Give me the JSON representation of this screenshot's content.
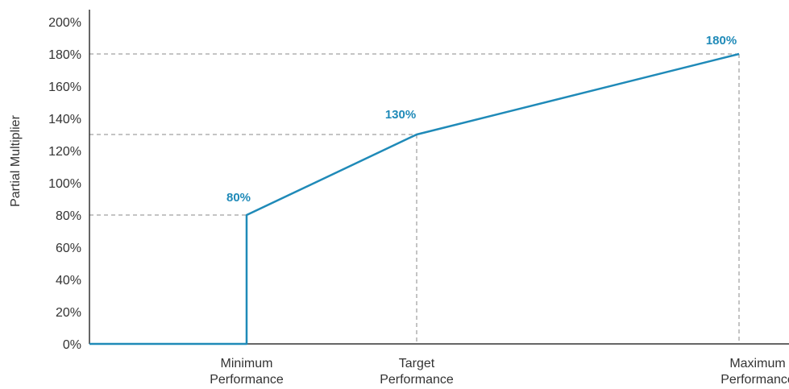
{
  "chart_data": {
    "type": "line",
    "ylabel": "Partial Multiplier",
    "xlabel": "",
    "ylim": [
      0,
      200
    ],
    "y_ticks": [
      "0%",
      "20%",
      "40%",
      "60%",
      "80%",
      "100%",
      "120%",
      "140%",
      "160%",
      "180%",
      "200%"
    ],
    "y_tick_values": [
      0,
      20,
      40,
      60,
      80,
      100,
      120,
      140,
      160,
      180,
      200
    ],
    "categories": [
      {
        "line1": "Minimum",
        "line2": "Performance"
      },
      {
        "line1": "Target",
        "line2": "Performance"
      },
      {
        "line1": "Maximum",
        "line2": "Performance"
      }
    ],
    "points": [
      {
        "x": "Minimum Performance",
        "y": 80,
        "label": "80%"
      },
      {
        "x": "Target Performance",
        "y": 130,
        "label": "130%"
      },
      {
        "x": "Maximum Performance",
        "y": 180,
        "label": "180%"
      }
    ],
    "below_minimum_value": 0,
    "grid": false,
    "legend": "none",
    "colors": {
      "line": "#1f8ab8",
      "guide": "#8a8a8a",
      "axis": "#333333",
      "label": "#1f8ab8"
    }
  }
}
